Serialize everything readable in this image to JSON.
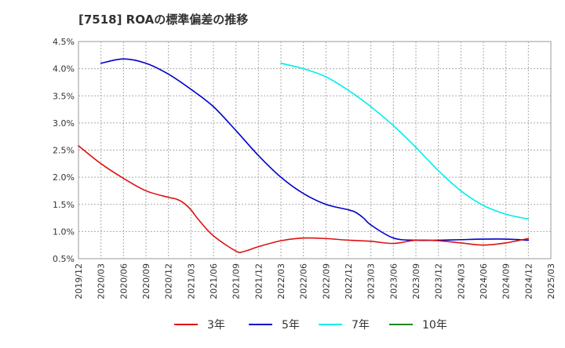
{
  "chart_data": {
    "type": "line",
    "title": "[7518]  ROAの標準偏差の推移",
    "xlabel": "",
    "ylabel": "",
    "ylim": [
      0.5,
      4.5
    ],
    "y_ticks": [
      "0.5%",
      "1.0%",
      "1.5%",
      "2.0%",
      "2.5%",
      "3.0%",
      "3.5%",
      "4.0%",
      "4.5%"
    ],
    "y_tick_values": [
      0.5,
      1.0,
      1.5,
      2.0,
      2.5,
      3.0,
      3.5,
      4.0,
      4.5
    ],
    "x_ticks": [
      "2019/12",
      "2020/03",
      "2020/06",
      "2020/09",
      "2020/12",
      "2021/03",
      "2021/06",
      "2021/09",
      "2021/12",
      "2022/03",
      "2022/06",
      "2022/09",
      "2022/12",
      "2023/03",
      "2023/06",
      "2023/09",
      "2023/12",
      "2024/03",
      "2024/06",
      "2024/09",
      "2024/12",
      "2025/03"
    ],
    "grid": true,
    "legend_position": "bottom",
    "series": [
      {
        "name": "3年",
        "color": "#dd1111",
        "x": [
          "2019/12",
          "2020/03",
          "2020/06",
          "2020/09",
          "2020/12",
          "2021/01",
          "2021/02",
          "2021/03",
          "2021/04",
          "2021/06",
          "2021/09",
          "2021/10",
          "2021/12",
          "2022/03",
          "2022/06",
          "2022/09",
          "2022/12",
          "2023/03",
          "2023/06",
          "2023/09",
          "2023/12",
          "2024/03",
          "2024/06",
          "2024/09",
          "2024/12"
        ],
        "values": [
          2.58,
          2.25,
          1.98,
          1.75,
          1.63,
          1.6,
          1.53,
          1.4,
          1.22,
          0.92,
          0.64,
          0.63,
          0.72,
          0.83,
          0.88,
          0.87,
          0.84,
          0.82,
          0.78,
          0.84,
          0.83,
          0.79,
          0.75,
          0.79,
          0.87
        ]
      },
      {
        "name": "5年",
        "color": "#0000cc",
        "x": [
          "2020/03",
          "2020/06",
          "2020/09",
          "2020/12",
          "2021/03",
          "2021/06",
          "2021/09",
          "2021/12",
          "2022/03",
          "2022/06",
          "2022/09",
          "2022/12",
          "2023/01",
          "2023/02",
          "2023/03",
          "2023/06",
          "2023/09",
          "2023/12",
          "2024/03",
          "2024/06",
          "2024/09",
          "2024/12"
        ],
        "values": [
          4.1,
          4.18,
          4.1,
          3.9,
          3.62,
          3.3,
          2.86,
          2.4,
          2.0,
          1.7,
          1.5,
          1.4,
          1.35,
          1.25,
          1.12,
          0.88,
          0.84,
          0.84,
          0.85,
          0.86,
          0.86,
          0.84
        ]
      },
      {
        "name": "7年",
        "color": "#00eeee",
        "x": [
          "2022/03",
          "2022/06",
          "2022/09",
          "2022/12",
          "2023/03",
          "2023/06",
          "2023/09",
          "2023/12",
          "2024/03",
          "2024/06",
          "2024/09",
          "2024/12"
        ],
        "values": [
          4.1,
          4.0,
          3.85,
          3.6,
          3.3,
          2.95,
          2.55,
          2.12,
          1.75,
          1.48,
          1.32,
          1.23
        ]
      },
      {
        "name": "10年",
        "color": "#228822",
        "x": [],
        "values": []
      }
    ]
  }
}
